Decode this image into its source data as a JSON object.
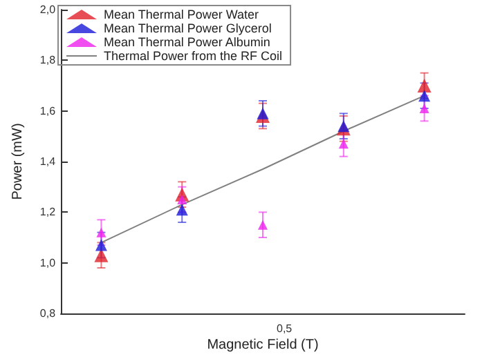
{
  "chart_data": {
    "type": "scatter",
    "xlabel": "Magnetic Field (T)",
    "ylabel": "Power (mW)",
    "categories": [
      null,
      null,
      null,
      null,
      null
    ],
    "annotations": [
      "0,5"
    ],
    "ylim": [
      0.8,
      2.0
    ],
    "yticks": [
      {
        "value": 0.8,
        "label": "0,8"
      },
      {
        "value": 1.0,
        "label": "1,0"
      },
      {
        "value": 1.2,
        "label": "1,2"
      },
      {
        "value": 1.4,
        "label": "1,4"
      },
      {
        "value": 1.6,
        "label": "1,6"
      },
      {
        "value": 1.8,
        "label": "1,8"
      },
      {
        "value": 2.0,
        "label": "2,0"
      }
    ],
    "grid": false,
    "legend": "top left",
    "marker": "triangle",
    "series": [
      {
        "name": "Mean Thermal Power Water",
        "color": "#e0202a",
        "values": [
          1.03,
          1.27,
          1.58,
          1.53,
          1.7
        ],
        "errors": [
          0.05,
          0.05,
          0.05,
          0.05,
          0.05
        ]
      },
      {
        "name": "Mean Thermal Power Glycerol",
        "color": "#1a1ad8",
        "values": [
          1.07,
          1.21,
          1.59,
          1.54,
          1.66
        ],
        "errors": [
          0.05,
          0.05,
          0.05,
          0.05,
          0.05
        ]
      },
      {
        "name": "Mean Thermal Power Albumin",
        "color": "#ee22ee",
        "values": [
          1.12,
          1.25,
          1.15,
          1.47,
          1.61
        ],
        "errors": [
          0.05,
          0.05,
          0.05,
          0.05,
          0.05
        ]
      },
      {
        "name": "Thermal Power from the RF Coil",
        "type": "line",
        "color": "#808080",
        "values": [
          1.08,
          1.23,
          1.37,
          1.52,
          1.66
        ],
        "marker": "none"
      }
    ]
  }
}
